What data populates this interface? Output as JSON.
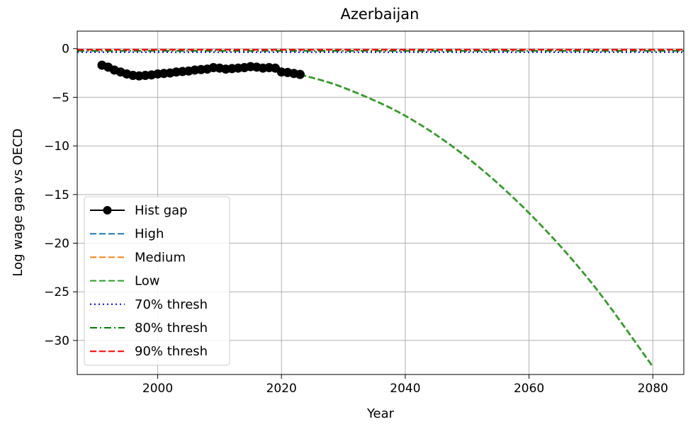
{
  "chart_data": {
    "type": "line",
    "title": "Azerbaijan",
    "xlabel": "Year",
    "ylabel": "Log wage gap vs OECD",
    "xlim": [
      1987,
      2085
    ],
    "ylim": [
      -33.5,
      1.8
    ],
    "xticks": [
      2000,
      2020,
      2040,
      2060,
      2080
    ],
    "yticks": [
      0,
      -5,
      -10,
      -15,
      -20,
      -25,
      -30
    ],
    "xtick_labels": [
      "2000",
      "2020",
      "2040",
      "2060",
      "2080"
    ],
    "ytick_labels": [
      "0",
      "−5",
      "−10",
      "−15",
      "−20",
      "−25",
      "−30"
    ],
    "grid": true,
    "legend_position": "lower-left",
    "series": [
      {
        "name": "Hist gap",
        "style": "solid-marker",
        "color": "#000000",
        "x": [
          1991,
          1992,
          1993,
          1994,
          1995,
          1996,
          1997,
          1998,
          1999,
          2000,
          2001,
          2002,
          2003,
          2004,
          2005,
          2006,
          2007,
          2008,
          2009,
          2010,
          2011,
          2012,
          2013,
          2014,
          2015,
          2016,
          2017,
          2018,
          2019,
          2020,
          2021,
          2022,
          2023
        ],
        "y": [
          -1.7,
          -1.9,
          -2.2,
          -2.4,
          -2.6,
          -2.75,
          -2.8,
          -2.75,
          -2.7,
          -2.6,
          -2.55,
          -2.5,
          -2.4,
          -2.35,
          -2.3,
          -2.2,
          -2.15,
          -2.1,
          -1.95,
          -2.0,
          -2.1,
          -2.05,
          -2.0,
          -1.95,
          -1.85,
          -1.9,
          -2.0,
          -1.95,
          -2.0,
          -2.4,
          -2.45,
          -2.55,
          -2.65
        ]
      },
      {
        "name": "High",
        "style": "dashed",
        "color": "#1f77b4",
        "x": [
          2023,
          2030,
          2040,
          2050,
          2060,
          2070,
          2080
        ],
        "y": [
          -2.65,
          -4.0,
          -6.9,
          -11.2,
          -16.9,
          -24.0,
          -32.7
        ]
      },
      {
        "name": "Medium",
        "style": "dashed",
        "color": "#ff7f0e",
        "x": [
          2023,
          2030,
          2040,
          2050,
          2060,
          2070,
          2080
        ],
        "y": [
          -2.65,
          -4.0,
          -6.9,
          -11.2,
          -16.9,
          -24.0,
          -32.7
        ]
      },
      {
        "name": "Low",
        "style": "dashed",
        "color": "#2ca02c",
        "x": [
          2023,
          2030,
          2040,
          2050,
          2060,
          2070,
          2080
        ],
        "y": [
          -2.65,
          -4.0,
          -6.9,
          -11.2,
          -16.9,
          -24.0,
          -32.7
        ]
      },
      {
        "name": "70% thresh",
        "style": "dotted",
        "color": "#0000ff",
        "hline": -0.36
      },
      {
        "name": "80% thresh",
        "style": "dashdot",
        "color": "#008000",
        "hline": -0.22
      },
      {
        "name": "90% thresh",
        "style": "dashed",
        "color": "#ff0000",
        "hline": -0.11
      }
    ]
  }
}
